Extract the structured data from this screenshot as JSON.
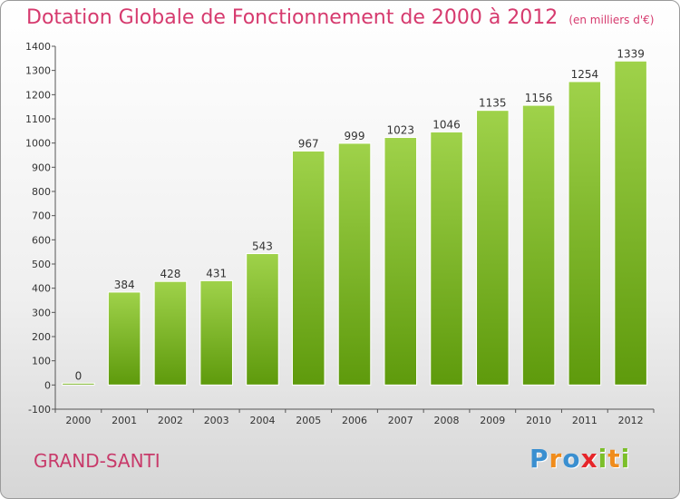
{
  "chart_data": {
    "type": "bar",
    "title": "Dotation Globale de Fonctionnement de 2000 à 2012",
    "subtitle": "(en milliers d'€)",
    "xlabel": "",
    "ylabel": "",
    "categories": [
      "2000",
      "2001",
      "2002",
      "2003",
      "2004",
      "2005",
      "2006",
      "2007",
      "2008",
      "2009",
      "2010",
      "2011",
      "2012"
    ],
    "values": [
      0,
      384,
      428,
      431,
      543,
      967,
      999,
      1023,
      1046,
      1135,
      1156,
      1254,
      1339
    ],
    "ylim": [
      -100,
      1400
    ],
    "yticks": [
      -100,
      0,
      100,
      200,
      300,
      400,
      500,
      600,
      700,
      800,
      900,
      1000,
      1100,
      1200,
      1300,
      1400
    ],
    "grid": false,
    "legend": "none",
    "bar_color_top": "#9fd24a",
    "bar_color_bottom": "#5e9a0c"
  },
  "footer": {
    "location": "GRAND-SANTI",
    "brand_letters": [
      {
        "ch": "P",
        "color": "#3a8fd0"
      },
      {
        "ch": "r",
        "color": "#f08c1c"
      },
      {
        "ch": "o",
        "color": "#3a8fd0"
      },
      {
        "ch": "x",
        "color": "#e6252a"
      },
      {
        "ch": "i",
        "color": "#7cbf2a"
      },
      {
        "ch": "t",
        "color": "#f08c1c"
      },
      {
        "ch": "i",
        "color": "#7cbf2a"
      }
    ]
  }
}
